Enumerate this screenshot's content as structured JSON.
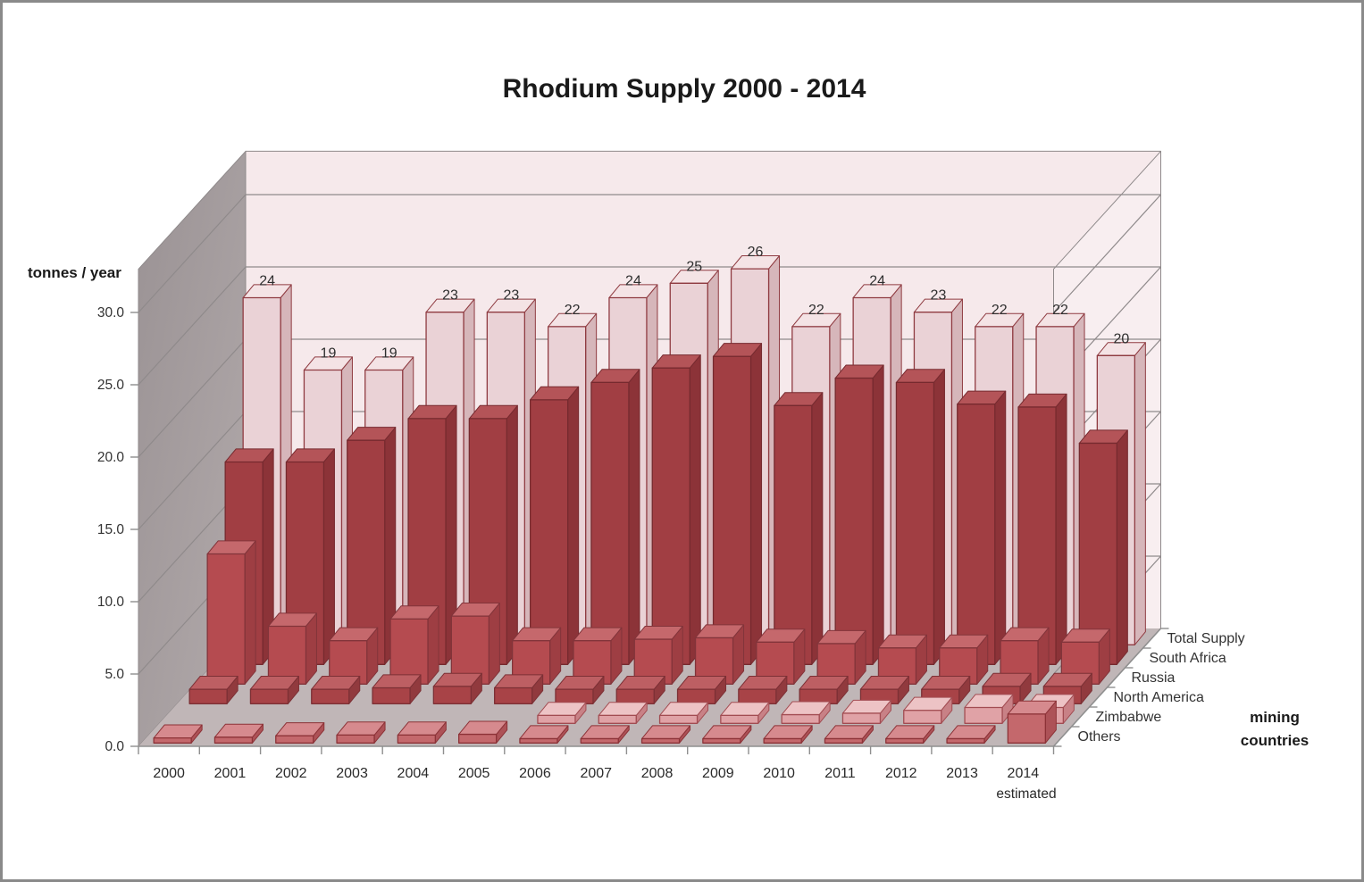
{
  "title": "Rhodium Supply 2000 - 2014",
  "value_axis": {
    "label": "tonnes / year",
    "min": 0,
    "max": 30,
    "tick_step": 5,
    "tick_labels": [
      "0.0",
      "5.0",
      "10.0",
      "15.0",
      "20.0",
      "25.0",
      "30.0"
    ]
  },
  "category_axis": {
    "labels": [
      "2000",
      "2001",
      "2002",
      "2003",
      "2004",
      "2005",
      "2006",
      "2007",
      "2008",
      "2009",
      "2010",
      "2011",
      "2012",
      "2013",
      "2014"
    ],
    "last_category_note": "estimated"
  },
  "series_axis": {
    "label_line1": "mining",
    "label_line2": "countries"
  },
  "chart_data": {
    "type": "bar",
    "subtype": "3d-column",
    "title": "Rhodium Supply 2000 - 2014",
    "ylabel": "tonnes / year",
    "ylim": [
      0,
      30
    ],
    "grid": true,
    "legend_position": "right-of-depth-axis",
    "categories": [
      "2000",
      "2001",
      "2002",
      "2003",
      "2004",
      "2005",
      "2006",
      "2007",
      "2008",
      "2009",
      "2010",
      "2011",
      "2012",
      "2013",
      "2014"
    ],
    "series": [
      {
        "name": "Total Supply",
        "values": [
          24,
          19,
          19,
          23,
          23,
          22,
          24,
          25,
          26,
          22,
          24,
          23,
          22,
          22,
          20
        ],
        "data_labels": [
          "24",
          "19",
          "19",
          "23",
          "23",
          "22",
          "24",
          "25",
          "26",
          "22",
          "24",
          "23",
          "22",
          "22",
          "20"
        ],
        "colors": {
          "front": "#ead2d6",
          "top": "#f4e3e5",
          "side": "#d6b6ba",
          "border": "#8f3b41"
        }
      },
      {
        "name": "South Africa",
        "values": [
          14.0,
          14.0,
          15.5,
          17.0,
          17.0,
          18.3,
          19.5,
          20.5,
          21.3,
          17.9,
          19.8,
          19.5,
          18.0,
          17.8,
          15.3
        ],
        "data_labels": null,
        "colors": {
          "front": "#a13e43",
          "top": "#b45458",
          "side": "#8c3338",
          "border": "#762a2f"
        }
      },
      {
        "name": "Russia",
        "values": [
          9.0,
          4.0,
          3.0,
          4.5,
          4.7,
          3.0,
          3.0,
          3.1,
          3.2,
          2.9,
          2.8,
          2.5,
          2.5,
          3.0,
          2.9
        ],
        "data_labels": null,
        "colors": {
          "front": "#b54b50",
          "top": "#c5686c",
          "side": "#9e3e43",
          "border": "#82343a"
        }
      },
      {
        "name": "North America",
        "values": [
          1.0,
          1.0,
          1.0,
          1.1,
          1.2,
          1.1,
          1.0,
          1.0,
          1.0,
          1.0,
          1.0,
          1.0,
          1.0,
          1.2,
          1.2
        ],
        "data_labels": null,
        "colors": {
          "front": "#a84347",
          "top": "#bd5f63",
          "side": "#913a3e",
          "border": "#7c3035"
        }
      },
      {
        "name": "Zimbabwe",
        "values": [
          0,
          0,
          0,
          0,
          0,
          0,
          0.55,
          0.55,
          0.55,
          0.55,
          0.6,
          0.7,
          0.9,
          1.1,
          1.1
        ],
        "data_labels": null,
        "colors": {
          "front": "#e0a2a6",
          "top": "#edc3c5",
          "side": "#c88186",
          "border": "#a24c52"
        }
      },
      {
        "name": "Others",
        "values": [
          0.35,
          0.4,
          0.5,
          0.55,
          0.55,
          0.6,
          0.3,
          0.3,
          0.3,
          0.3,
          0.3,
          0.3,
          0.3,
          0.3,
          2.0
        ],
        "data_labels": null,
        "colors": {
          "front": "#c4686c",
          "top": "#d68a8e",
          "side": "#ad5257",
          "border": "#8c3237"
        }
      }
    ]
  },
  "colors": {
    "back_wall": "#f6e9eb",
    "right_wall": "#f8eef0",
    "left_wall_top": "#9a9294",
    "left_wall_bottom": "#b2aaab",
    "floor": "#c0b6b7",
    "gridline": "#8f8a8b",
    "axis_line": "#8f8f8f",
    "frame_border": "#8a8a8a"
  }
}
